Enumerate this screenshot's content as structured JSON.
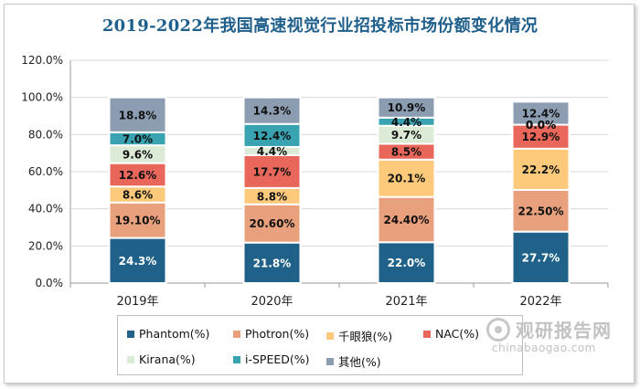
{
  "chart_data": {
    "type": "bar",
    "stacked": true,
    "title": "2019-2022年我国高速视觉行业招投标市场份额变化情况",
    "categories": [
      "2019年",
      "2020年",
      "2021年",
      "2022年"
    ],
    "ylim": [
      0,
      120
    ],
    "yticks": [
      0,
      20,
      40,
      60,
      80,
      100,
      120
    ],
    "ytick_labels": [
      "0.0%",
      "20.0%",
      "40.0%",
      "60.0%",
      "80.0%",
      "100.0%",
      "120.0%"
    ],
    "grid": true,
    "legend_position": "bottom",
    "series": [
      {
        "name": "Phantom(%)",
        "color": "#1f6188",
        "label_color": "#ffffff",
        "values": [
          24.3,
          21.8,
          22.0,
          27.7
        ],
        "labels": [
          "24.3%",
          "21.8%",
          "22.0%",
          "27.7%"
        ]
      },
      {
        "name": "Photron(%)",
        "color": "#e9a07c",
        "label_color": "#111111",
        "values": [
          19.1,
          20.6,
          24.4,
          22.5
        ],
        "labels": [
          "19.10%",
          "20.60%",
          "24.40%",
          "22.50%"
        ]
      },
      {
        "name": "千眼狼(%)",
        "color": "#fdc97b",
        "label_color": "#111111",
        "values": [
          8.6,
          8.8,
          20.1,
          22.2
        ],
        "labels": [
          "8.6%",
          "8.8%",
          "20.1%",
          "22.2%"
        ]
      },
      {
        "name": "NAC(%)",
        "color": "#e8675a",
        "label_color": "#111111",
        "values": [
          12.6,
          17.7,
          8.5,
          12.9
        ],
        "labels": [
          "12.6%",
          "17.7%",
          "8.5%",
          "12.9%"
        ]
      },
      {
        "name": "Kirana(%)",
        "color": "#dcebd6",
        "label_color": "#111111",
        "values": [
          9.6,
          4.4,
          9.7,
          0.0
        ],
        "labels": [
          "9.6%",
          "4.4%",
          "9.7%",
          "0.0%"
        ]
      },
      {
        "name": "i-SPEED(%)",
        "color": "#3aa3b1",
        "label_color": "#111111",
        "values": [
          7.0,
          12.4,
          4.4,
          0.0
        ],
        "labels": [
          "7.0%",
          "12.4%",
          "4.4%",
          "0.0%"
        ]
      },
      {
        "name": "其他(%)",
        "color": "#8c9db2",
        "label_color": "#111111",
        "values": [
          18.8,
          14.3,
          10.9,
          12.4
        ],
        "labels": [
          "18.8%",
          "14.3%",
          "10.9%",
          "12.4%"
        ]
      }
    ]
  },
  "watermark": {
    "name": "观研报告网",
    "url": "chinabaogao.com"
  }
}
